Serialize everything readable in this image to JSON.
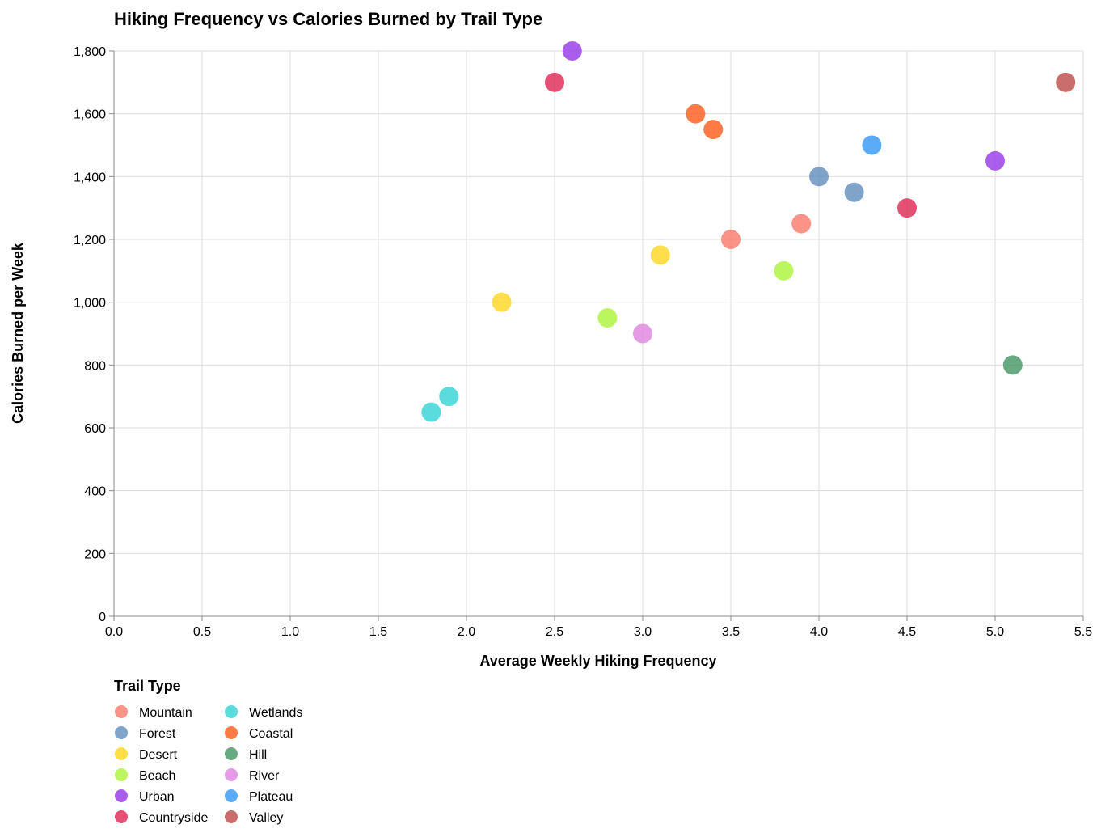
{
  "chart_data": {
    "type": "scatter",
    "title": "Hiking Frequency vs Calories Burned by Trail Type",
    "xlabel": "Average Weekly Hiking Frequency",
    "ylabel": "Calories Burned per Week",
    "xlim": [
      0,
      5.5
    ],
    "ylim": [
      0,
      1800
    ],
    "x_ticks": [
      "0.0",
      "0.5",
      "1.0",
      "1.5",
      "2.0",
      "2.5",
      "3.0",
      "3.5",
      "4.0",
      "4.5",
      "5.0",
      "5.5"
    ],
    "y_ticks": [
      "0",
      "200",
      "400",
      "600",
      "800",
      "1,000",
      "1,200",
      "1,400",
      "1,600",
      "1,800"
    ],
    "grid": true,
    "legend_title": "Trail Type",
    "legend_placement": "bottom-left",
    "series": [
      {
        "name": "Mountain",
        "color": "#fa8072",
        "points": [
          {
            "x": 3.5,
            "y": 1200
          },
          {
            "x": 3.9,
            "y": 1250
          }
        ]
      },
      {
        "name": "Forest",
        "color": "#6a93c0",
        "points": [
          {
            "x": 4.0,
            "y": 1400
          },
          {
            "x": 4.2,
            "y": 1350
          }
        ]
      },
      {
        "name": "Desert",
        "color": "#ffd82c",
        "points": [
          {
            "x": 2.2,
            "y": 1000
          },
          {
            "x": 3.1,
            "y": 1150
          }
        ]
      },
      {
        "name": "Beach",
        "color": "#b0f542",
        "points": [
          {
            "x": 2.8,
            "y": 950
          },
          {
            "x": 3.8,
            "y": 1100
          }
        ]
      },
      {
        "name": "Urban",
        "color": "#9a43e8",
        "points": [
          {
            "x": 2.6,
            "y": 1800
          },
          {
            "x": 5.0,
            "y": 1450
          }
        ]
      },
      {
        "name": "Countryside",
        "color": "#e0325c",
        "points": [
          {
            "x": 2.5,
            "y": 1700
          },
          {
            "x": 4.5,
            "y": 1300
          }
        ]
      },
      {
        "name": "Wetlands",
        "color": "#3dd6d6",
        "points": [
          {
            "x": 1.8,
            "y": 650
          },
          {
            "x": 1.9,
            "y": 700
          }
        ]
      },
      {
        "name": "Coastal",
        "color": "#ff6324",
        "points": [
          {
            "x": 3.3,
            "y": 1600
          },
          {
            "x": 3.4,
            "y": 1550
          }
        ]
      },
      {
        "name": "Hill",
        "color": "#4c9a6a",
        "points": [
          {
            "x": 5.1,
            "y": 800
          }
        ]
      },
      {
        "name": "River",
        "color": "#e08ae0",
        "points": [
          {
            "x": 3.0,
            "y": 900
          }
        ]
      },
      {
        "name": "Plateau",
        "color": "#3d9cf7",
        "points": [
          {
            "x": 4.3,
            "y": 1500
          }
        ]
      },
      {
        "name": "Valley",
        "color": "#c05454",
        "points": [
          {
            "x": 5.4,
            "y": 1700
          }
        ]
      }
    ]
  }
}
